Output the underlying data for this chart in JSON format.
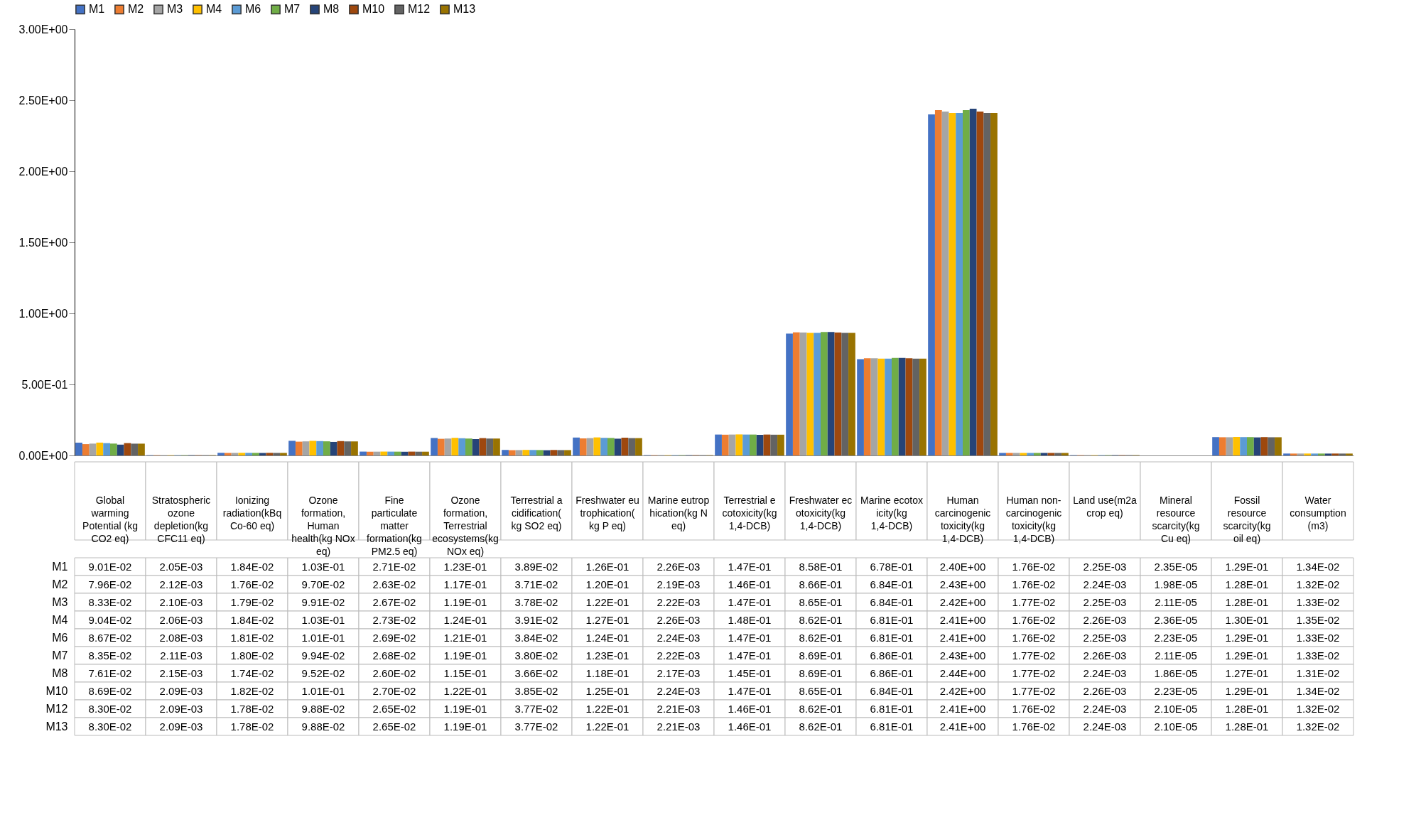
{
  "chart_data": {
    "type": "bar",
    "categories": [
      "Global warming Potential (kg CO2 eq)",
      "Stratospheric ozone depletion(kg CFC11 eq)",
      "Ionizing radiation(kBq Co-60 eq)",
      "Ozone formation, Human health(kg NOx eq)",
      "Fine particulate matter formation(kg PM2.5 eq)",
      "Ozone formation, Terrestrial ecosystems(kg NOx eq)",
      "Terrestrial acidification(kg SO2 eq)",
      "Freshwater eutrophication(kg P eq)",
      "Marine eutrophication(kg N eq)",
      "Terrestrial ecotoxicity(kg 1,4-DCB)",
      "Freshwater ecotoxicity(kg 1,4-DCB)",
      "Marine ecotoxicity(kg 1,4-DCB)",
      "Human carcinogenic toxicity(kg 1,4-DCB)",
      "Human non-carcinogenic toxicity(kg 1,4-DCB)",
      "Land use(m2a crop eq)",
      "Mineral resource scarcity(kg Cu eq)",
      "Fossil resource scarcity(kg oil eq)",
      "Water consumption (m3)"
    ],
    "series": [
      {
        "name": "M1",
        "color": "#4472c4",
        "values": [
          0.0901,
          0.00205,
          0.0184,
          0.103,
          0.0271,
          0.123,
          0.0389,
          0.126,
          0.00226,
          0.147,
          0.858,
          0.678,
          2.4,
          0.0176,
          0.00225,
          2.35e-05,
          0.129,
          0.0134
        ],
        "value_labels": [
          "9.01E-02",
          "2.05E-03",
          "1.84E-02",
          "1.03E-01",
          "2.71E-02",
          "1.23E-01",
          "3.89E-02",
          "1.26E-01",
          "2.26E-03",
          "1.47E-01",
          "8.58E-01",
          "6.78E-01",
          "2.40E+00",
          "1.76E-02",
          "2.25E-03",
          "2.35E-05",
          "1.29E-01",
          "1.34E-02"
        ]
      },
      {
        "name": "M2",
        "color": "#ed7d31",
        "values": [
          0.0796,
          0.00212,
          0.0176,
          0.097,
          0.0263,
          0.117,
          0.0371,
          0.12,
          0.00219,
          0.146,
          0.866,
          0.684,
          2.43,
          0.0176,
          0.00224,
          1.98e-05,
          0.128,
          0.0132
        ],
        "value_labels": [
          "7.96E-02",
          "2.12E-03",
          "1.76E-02",
          "9.70E-02",
          "2.63E-02",
          "1.17E-01",
          "3.71E-02",
          "1.20E-01",
          "2.19E-03",
          "1.46E-01",
          "8.66E-01",
          "6.84E-01",
          "2.43E+00",
          "1.76E-02",
          "2.24E-03",
          "1.98E-05",
          "1.28E-01",
          "1.32E-02"
        ]
      },
      {
        "name": "M3",
        "color": "#a5a5a5",
        "values": [
          0.0833,
          0.0021,
          0.0179,
          0.0991,
          0.0267,
          0.119,
          0.0378,
          0.122,
          0.00222,
          0.147,
          0.865,
          0.684,
          2.42,
          0.0177,
          0.00225,
          2.11e-05,
          0.128,
          0.0133
        ],
        "value_labels": [
          "8.33E-02",
          "2.10E-03",
          "1.79E-02",
          "9.91E-02",
          "2.67E-02",
          "1.19E-01",
          "3.78E-02",
          "1.22E-01",
          "2.22E-03",
          "1.47E-01",
          "8.65E-01",
          "6.84E-01",
          "2.42E+00",
          "1.77E-02",
          "2.25E-03",
          "2.11E-05",
          "1.28E-01",
          "1.33E-02"
        ]
      },
      {
        "name": "M4",
        "color": "#ffc000",
        "values": [
          0.0904,
          0.00206,
          0.0184,
          0.103,
          0.0273,
          0.124,
          0.0391,
          0.127,
          0.00226,
          0.148,
          0.862,
          0.681,
          2.41,
          0.0176,
          0.00226,
          2.36e-05,
          0.13,
          0.0135
        ],
        "value_labels": [
          "9.04E-02",
          "2.06E-03",
          "1.84E-02",
          "1.03E-01",
          "2.73E-02",
          "1.24E-01",
          "3.91E-02",
          "1.27E-01",
          "2.26E-03",
          "1.48E-01",
          "8.62E-01",
          "6.81E-01",
          "2.41E+00",
          "1.76E-02",
          "2.26E-03",
          "2.36E-05",
          "1.30E-01",
          "1.35E-02"
        ]
      },
      {
        "name": "M6",
        "color": "#5b9bd5",
        "values": [
          0.0867,
          0.00208,
          0.0181,
          0.101,
          0.0269,
          0.121,
          0.0384,
          0.124,
          0.00224,
          0.147,
          0.862,
          0.681,
          2.41,
          0.0176,
          0.00225,
          2.23e-05,
          0.129,
          0.0133
        ],
        "value_labels": [
          "8.67E-02",
          "2.08E-03",
          "1.81E-02",
          "1.01E-01",
          "2.69E-02",
          "1.21E-01",
          "3.84E-02",
          "1.24E-01",
          "2.24E-03",
          "1.47E-01",
          "8.62E-01",
          "6.81E-01",
          "2.41E+00",
          "1.76E-02",
          "2.25E-03",
          "2.23E-05",
          "1.29E-01",
          "1.33E-02"
        ]
      },
      {
        "name": "M7",
        "color": "#70ad47",
        "values": [
          0.0835,
          0.00211,
          0.018,
          0.0994,
          0.0268,
          0.119,
          0.038,
          0.123,
          0.00222,
          0.147,
          0.869,
          0.686,
          2.43,
          0.0177,
          0.00226,
          2.11e-05,
          0.129,
          0.0133
        ],
        "value_labels": [
          "8.35E-02",
          "2.11E-03",
          "1.80E-02",
          "9.94E-02",
          "2.68E-02",
          "1.19E-01",
          "3.80E-02",
          "1.23E-01",
          "2.22E-03",
          "1.47E-01",
          "8.69E-01",
          "6.86E-01",
          "2.43E+00",
          "1.77E-02",
          "2.26E-03",
          "2.11E-05",
          "1.29E-01",
          "1.33E-02"
        ]
      },
      {
        "name": "M8",
        "color": "#264478",
        "values": [
          0.0761,
          0.00215,
          0.0174,
          0.0952,
          0.026,
          0.115,
          0.0366,
          0.118,
          0.00217,
          0.145,
          0.869,
          0.686,
          2.44,
          0.0177,
          0.00224,
          1.86e-05,
          0.127,
          0.0131
        ],
        "value_labels": [
          "7.61E-02",
          "2.15E-03",
          "1.74E-02",
          "9.52E-02",
          "2.60E-02",
          "1.15E-01",
          "3.66E-02",
          "1.18E-01",
          "2.17E-03",
          "1.45E-01",
          "8.69E-01",
          "6.86E-01",
          "2.44E+00",
          "1.77E-02",
          "2.24E-03",
          "1.86E-05",
          "1.27E-01",
          "1.31E-02"
        ]
      },
      {
        "name": "M10",
        "color": "#9e480e",
        "values": [
          0.0869,
          0.00209,
          0.0182,
          0.101,
          0.027,
          0.122,
          0.0385,
          0.125,
          0.00224,
          0.147,
          0.865,
          0.684,
          2.42,
          0.0177,
          0.00226,
          2.23e-05,
          0.129,
          0.0134
        ],
        "value_labels": [
          "8.69E-02",
          "2.09E-03",
          "1.82E-02",
          "1.01E-01",
          "2.70E-02",
          "1.22E-01",
          "3.85E-02",
          "1.25E-01",
          "2.24E-03",
          "1.47E-01",
          "8.65E-01",
          "6.84E-01",
          "2.42E+00",
          "1.77E-02",
          "2.26E-03",
          "2.23E-05",
          "1.29E-01",
          "1.34E-02"
        ]
      },
      {
        "name": "M12",
        "color": "#636363",
        "values": [
          0.083,
          0.00209,
          0.0178,
          0.0988,
          0.0265,
          0.119,
          0.0377,
          0.122,
          0.00221,
          0.146,
          0.862,
          0.681,
          2.41,
          0.0176,
          0.00224,
          2.1e-05,
          0.128,
          0.0132
        ],
        "value_labels": [
          "8.30E-02",
          "2.09E-03",
          "1.78E-02",
          "9.88E-02",
          "2.65E-02",
          "1.19E-01",
          "3.77E-02",
          "1.22E-01",
          "2.21E-03",
          "1.46E-01",
          "8.62E-01",
          "6.81E-01",
          "2.41E+00",
          "1.76E-02",
          "2.24E-03",
          "2.10E-05",
          "1.28E-01",
          "1.32E-02"
        ]
      },
      {
        "name": "M13",
        "color": "#997300",
        "values": [
          0.083,
          0.00209,
          0.0178,
          0.0988,
          0.0265,
          0.119,
          0.0377,
          0.122,
          0.00221,
          0.146,
          0.862,
          0.681,
          2.41,
          0.0176,
          0.00224,
          2.1e-05,
          0.128,
          0.0132
        ],
        "value_labels": [
          "8.30E-02",
          "2.09E-03",
          "1.78E-02",
          "9.88E-02",
          "2.65E-02",
          "1.19E-01",
          "3.77E-02",
          "1.22E-01",
          "2.21E-03",
          "1.46E-01",
          "8.62E-01",
          "6.81E-01",
          "2.41E+00",
          "1.76E-02",
          "2.24E-03",
          "2.10E-05",
          "1.28E-01",
          "1.32E-02"
        ]
      }
    ],
    "ylim": [
      0,
      3
    ],
    "yticks": [
      {
        "value": 0,
        "label": "0.00E+00"
      },
      {
        "value": 0.5,
        "label": "5.00E-01"
      },
      {
        "value": 1,
        "label": "1.00E+00"
      },
      {
        "value": 1.5,
        "label": "1.50E+00"
      },
      {
        "value": 2,
        "label": "2.00E+00"
      },
      {
        "value": 2.5,
        "label": "2.50E+00"
      },
      {
        "value": 3,
        "label": "3.00E+00"
      }
    ],
    "grid": false,
    "legend": "top"
  }
}
